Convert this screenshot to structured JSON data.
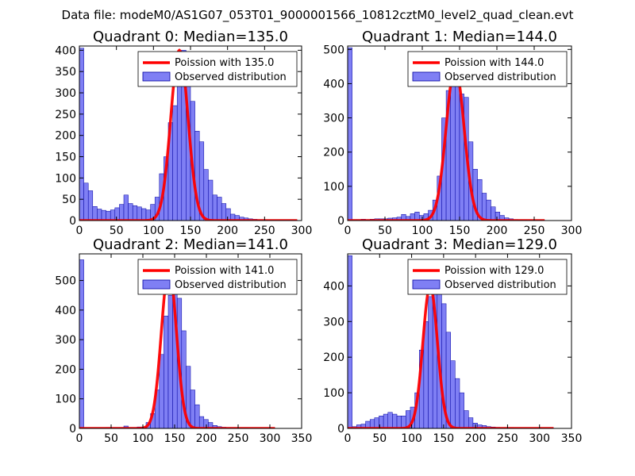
{
  "figure": {
    "suptitle": "Data file: modeM0/AS1G07_053T01_9000001566_10812cztM0_level2_quad_clean.evt"
  },
  "colors": {
    "bar_fill": "#7f7ff4",
    "bar_edge": "#0000a0",
    "poisson_line": "#ff0000",
    "axis": "#000000"
  },
  "chart_data": [
    {
      "type": "bar",
      "title": "Quadrant 0: Median=135.0",
      "median": 135.0,
      "xlim": [
        0,
        300
      ],
      "ylim": [
        0,
        410
      ],
      "xticks": [
        "0",
        "50",
        "100",
        "150",
        "200",
        "250",
        "300"
      ],
      "yticks": [
        "0",
        "50",
        "100",
        "150",
        "200",
        "250",
        "300",
        "350",
        "400"
      ],
      "bin_width": 6,
      "bins": [
        0,
        6,
        12,
        18,
        24,
        30,
        36,
        42,
        48,
        54,
        60,
        66,
        72,
        78,
        84,
        90,
        96,
        102,
        108,
        114,
        120,
        126,
        132,
        138,
        144,
        150,
        156,
        162,
        168,
        174,
        180,
        186,
        192,
        198,
        204,
        210,
        216,
        222,
        228,
        234,
        240,
        246,
        252,
        258,
        264,
        270,
        276,
        282,
        288
      ],
      "values": [
        405,
        88,
        70,
        33,
        27,
        24,
        22,
        25,
        30,
        38,
        60,
        40,
        35,
        32,
        28,
        25,
        38,
        55,
        110,
        150,
        230,
        270,
        350,
        400,
        380,
        280,
        210,
        185,
        120,
        95,
        60,
        55,
        40,
        28,
        15,
        12,
        8,
        6,
        4,
        3,
        2,
        2,
        1,
        1,
        1,
        1,
        1,
        1,
        1
      ],
      "legend": {
        "line": "Poission with 135.0",
        "bars": "Observed distribution",
        "position": "upper-right"
      }
    },
    {
      "type": "bar",
      "title": "Quadrant 1: Median=144.0",
      "median": 144.0,
      "xlim": [
        0,
        300
      ],
      "ylim": [
        0,
        510
      ],
      "xticks": [
        "0",
        "50",
        "100",
        "150",
        "200",
        "250",
        "300"
      ],
      "yticks": [
        "0",
        "100",
        "200",
        "300",
        "400",
        "500"
      ],
      "bin_width": 6,
      "bins": [
        0,
        6,
        12,
        18,
        24,
        30,
        36,
        42,
        48,
        54,
        60,
        66,
        72,
        78,
        84,
        90,
        96,
        102,
        108,
        114,
        120,
        126,
        132,
        138,
        144,
        150,
        156,
        162,
        168,
        174,
        180,
        186,
        192,
        198,
        204,
        210,
        216,
        222,
        228,
        234,
        240,
        246,
        252,
        258
      ],
      "values": [
        505,
        3,
        3,
        4,
        3,
        4,
        5,
        5,
        5,
        7,
        8,
        10,
        18,
        12,
        20,
        25,
        15,
        20,
        30,
        60,
        130,
        300,
        380,
        420,
        450,
        370,
        360,
        230,
        150,
        120,
        80,
        60,
        40,
        25,
        15,
        8,
        5,
        3,
        2,
        2,
        1,
        1,
        1,
        1
      ],
      "legend": {
        "line": "Poission with 144.0",
        "bars": "Observed distribution",
        "position": "upper-right"
      }
    },
    {
      "type": "bar",
      "title": "Quadrant 2: Median=141.0",
      "median": 141.0,
      "xlim": [
        0,
        350
      ],
      "ylim": [
        0,
        590
      ],
      "xticks": [
        "0",
        "50",
        "100",
        "150",
        "200",
        "250",
        "300",
        "350"
      ],
      "yticks": [
        "0",
        "100",
        "200",
        "300",
        "400",
        "500"
      ],
      "bin_width": 7,
      "bins": [
        0,
        7,
        14,
        21,
        28,
        35,
        42,
        49,
        56,
        63,
        70,
        77,
        84,
        91,
        98,
        105,
        112,
        119,
        126,
        133,
        140,
        147,
        154,
        161,
        168,
        175,
        182,
        189,
        196,
        203,
        210,
        217,
        224,
        231,
        238,
        245,
        252,
        259,
        266,
        273,
        280,
        287,
        294,
        301
      ],
      "values": [
        570,
        2,
        2,
        2,
        2,
        2,
        3,
        3,
        3,
        3,
        8,
        3,
        3,
        5,
        5,
        20,
        50,
        130,
        250,
        380,
        450,
        540,
        440,
        330,
        210,
        130,
        80,
        40,
        30,
        20,
        10,
        6,
        4,
        3,
        3,
        2,
        2,
        2,
        1,
        1,
        1,
        1,
        1,
        1
      ],
      "legend": {
        "line": "Poission with 141.0",
        "bars": "Observed distribution",
        "position": "upper-right"
      }
    },
    {
      "type": "bar",
      "title": "Quadrant 3: Median=129.0",
      "median": 129.0,
      "xlim": [
        0,
        350
      ],
      "ylim": [
        0,
        490
      ],
      "xticks": [
        "0",
        "50",
        "100",
        "150",
        "200",
        "250",
        "300",
        "350"
      ],
      "yticks": [
        "0",
        "100",
        "200",
        "300",
        "400"
      ],
      "bin_width": 7,
      "bins": [
        0,
        7,
        14,
        21,
        28,
        35,
        42,
        49,
        56,
        63,
        70,
        77,
        84,
        91,
        98,
        105,
        112,
        119,
        126,
        133,
        140,
        147,
        154,
        161,
        168,
        175,
        182,
        189,
        196,
        203,
        210,
        217,
        224,
        231,
        238,
        245,
        252,
        259,
        266,
        273,
        280,
        287,
        294,
        301,
        308,
        315
      ],
      "values": [
        485,
        5,
        10,
        12,
        20,
        25,
        30,
        35,
        40,
        45,
        40,
        35,
        35,
        50,
        60,
        100,
        220,
        300,
        370,
        400,
        440,
        350,
        270,
        190,
        140,
        100,
        50,
        30,
        15,
        10,
        8,
        5,
        4,
        3,
        2,
        2,
        2,
        1,
        1,
        1,
        1,
        1,
        1,
        1,
        1,
        1
      ],
      "legend": {
        "line": "Poission with 129.0",
        "bars": "Observed distribution",
        "position": "upper-right"
      }
    }
  ]
}
